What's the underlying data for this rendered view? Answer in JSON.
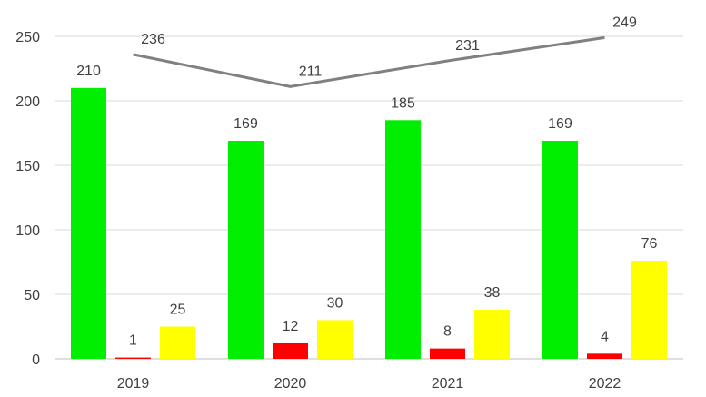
{
  "chart_data": {
    "type": "bar",
    "categories": [
      "2019",
      "2020",
      "2021",
      "2022"
    ],
    "series": [
      {
        "values": [
          210,
          169,
          185,
          169
        ],
        "color": "#00ee00",
        "type": "bar"
      },
      {
        "values": [
          1,
          12,
          8,
          4
        ],
        "color": "#ff0000",
        "type": "bar"
      },
      {
        "values": [
          25,
          30,
          38,
          76
        ],
        "color": "#ffff00",
        "type": "bar"
      },
      {
        "values": [
          236,
          211,
          231,
          249
        ],
        "color": "#808080",
        "type": "line"
      }
    ],
    "y_ticks": [
      "0",
      "50",
      "100",
      "150",
      "200",
      "250"
    ],
    "ylim": [
      0,
      250
    ],
    "grid": true,
    "title": "",
    "xlabel": "",
    "ylabel": ""
  }
}
